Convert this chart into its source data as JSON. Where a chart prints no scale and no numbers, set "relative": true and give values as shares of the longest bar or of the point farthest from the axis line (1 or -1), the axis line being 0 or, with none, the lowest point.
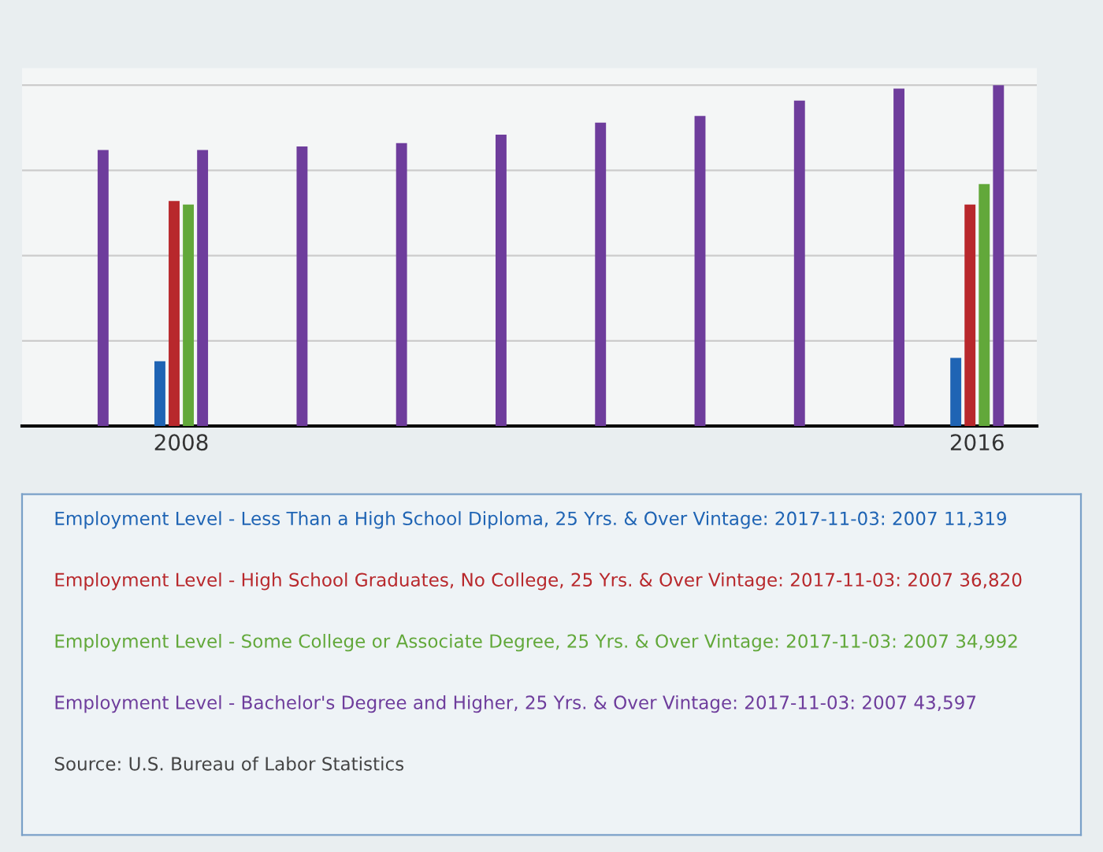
{
  "chart_data": {
    "type": "bar",
    "relative": true,
    "grid": "y",
    "categories": [
      null,
      "2008",
      null,
      null,
      null,
      null,
      null,
      null,
      null,
      "2016"
    ],
    "series": [
      {
        "color": "#1f64b4",
        "values": [
          null,
          0.19,
          null,
          null,
          null,
          null,
          null,
          null,
          null,
          0.2
        ]
      },
      {
        "color": "#b8282c",
        "values": [
          null,
          0.66,
          null,
          null,
          null,
          null,
          null,
          null,
          null,
          0.65
        ]
      },
      {
        "color": "#62a83a",
        "values": [
          null,
          0.65,
          null,
          null,
          null,
          null,
          null,
          null,
          null,
          0.71
        ]
      },
      {
        "color": "#6e3d9c",
        "values": [
          0.81,
          0.81,
          0.82,
          0.83,
          0.855,
          0.89,
          0.91,
          0.955,
          0.99,
          1
        ]
      }
    ],
    "annotations": [
      "Employment Level - Less Than a High School Diploma, 25 Yrs. & Over Vintage: 2017-11-03: 2007 11,319",
      "Employment Level - High School Graduates, No College, 25 Yrs. & Over Vintage: 2017-11-03: 2007 36,820",
      "Employment Level - Some College or Associate Degree, 25 Yrs. & Over Vintage: 2017-11-03: 2007 34,992",
      "Employment Level - Bachelor's Degree and Higher, 25 Yrs. & Over Vintage: 2017-11-03: 2007 43,597",
      "Source: U.S. Bureau of Labor Statistics"
    ]
  }
}
